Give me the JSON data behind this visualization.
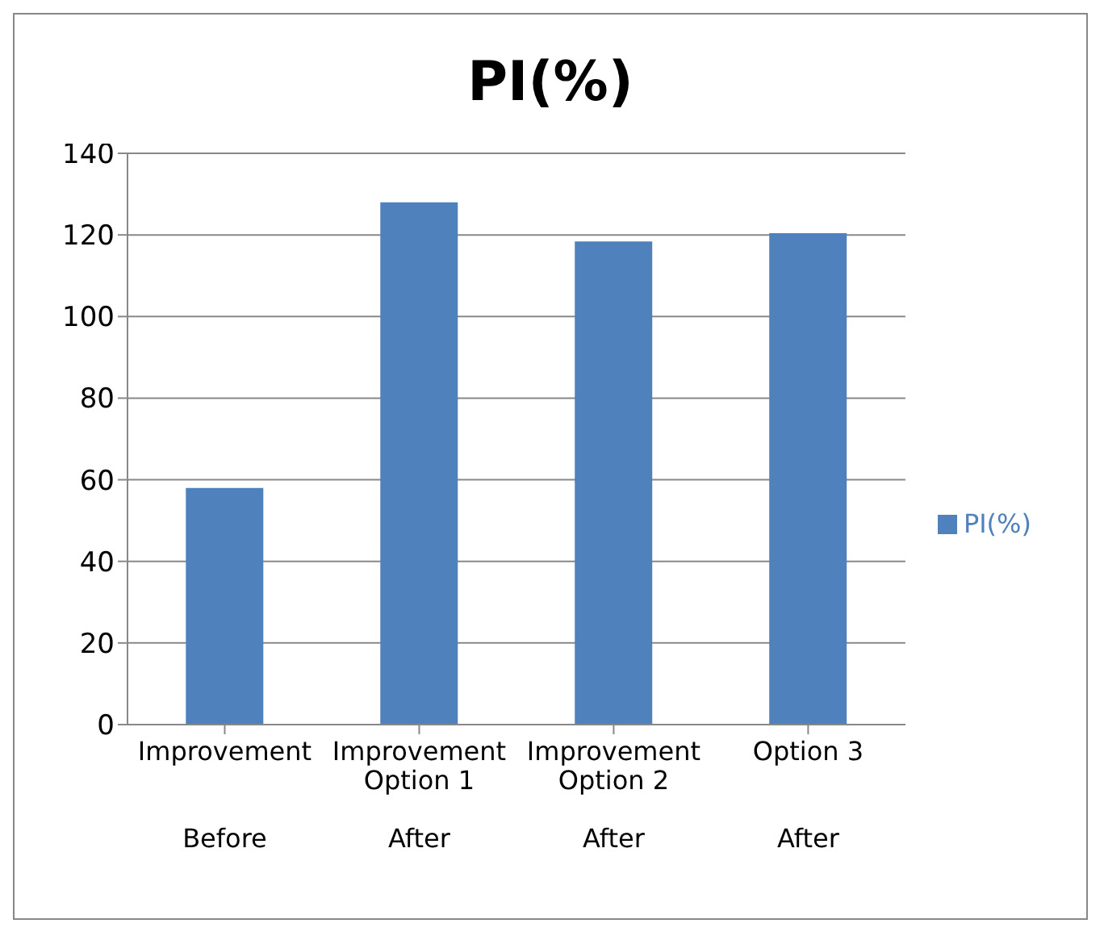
{
  "chart_data": {
    "type": "bar",
    "title": "PI(%)",
    "categories": [
      "Improvement\nBefore",
      "Improvement Option 1\nAfter",
      "Improvement Option 2\nAfter",
      "Option 3\nAfter"
    ],
    "series": [
      {
        "name": "PI(%)",
        "color": "#4f81bd",
        "values": [
          58,
          128,
          118.4,
          120.4
        ]
      }
    ],
    "ylim": [
      0,
      140
    ],
    "yticks": [
      0,
      20,
      40,
      60,
      80,
      100,
      120,
      140
    ],
    "grid": "y",
    "legend": "right"
  }
}
